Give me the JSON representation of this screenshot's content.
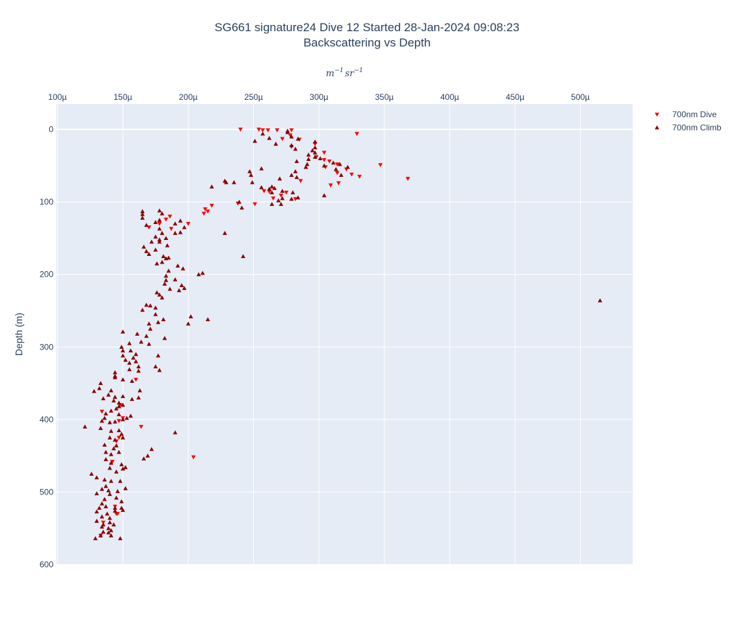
{
  "chart_data": {
    "type": "scatter",
    "title": "SG661 signature24 Dive 12 Started 28-Jan-2024 09:08:23",
    "subtitle": "Backscattering vs Depth",
    "xlabel_base": "m",
    "xlabel_base_exp": "−1",
    "xlabel_unit": "sr",
    "xlabel_unit_exp": "−1",
    "ylabel": "Depth (m)",
    "x_axis_position": "top",
    "y_reversed": true,
    "xlim": [
      9.9e-05,
      0.00054
    ],
    "ylim": [
      600,
      -35
    ],
    "x_ticks": [
      0.0001,
      0.00015,
      0.0002,
      0.00025,
      0.0003,
      0.00035,
      0.0004,
      0.00045,
      0.0005
    ],
    "x_tick_labels": [
      "100µ",
      "150µ",
      "200µ",
      "250µ",
      "300µ",
      "350µ",
      "400µ",
      "450µ",
      "500µ"
    ],
    "y_ticks": [
      0,
      100,
      200,
      300,
      400,
      500,
      600
    ],
    "y_tick_labels": [
      "0",
      "100",
      "200",
      "300",
      "400",
      "500",
      "600"
    ],
    "grid": true,
    "legend_position": "top-right",
    "colors": {
      "plot_background": "#e5ecf6",
      "grid": "#ffffff",
      "dive": "#ff0000",
      "climb": "#8b0000"
    },
    "series": [
      {
        "name": "700nm Dive",
        "marker": "triangle-down",
        "color": "#ff0000",
        "points": [
          [
            0.00024,
            0
          ],
          [
            0.000254,
            0
          ],
          [
            0.000257,
            1
          ],
          [
            0.000261,
            1
          ],
          [
            0.000268,
            1
          ],
          [
            0.000279,
            1
          ],
          [
            0.000278,
            8
          ],
          [
            0.000272,
            13
          ],
          [
            0.000285,
            14
          ],
          [
            0.000297,
            20
          ],
          [
            0.000304,
            32
          ],
          [
            0.000304,
            42
          ],
          [
            0.000308,
            44
          ],
          [
            0.000298,
            38
          ],
          [
            0.000305,
            52
          ],
          [
            0.000314,
            48
          ],
          [
            0.000321,
            55
          ],
          [
            0.000314,
            60
          ],
          [
            0.000325,
            62
          ],
          [
            0.000331,
            65
          ],
          [
            0.000329,
            6
          ],
          [
            0.000347,
            49
          ],
          [
            0.000368,
            68
          ],
          [
            0.000315,
            74
          ],
          [
            0.000309,
            77
          ],
          [
            0.000286,
            71
          ],
          [
            0.000279,
            24
          ],
          [
            0.000282,
            96
          ],
          [
            0.000275,
            87
          ],
          [
            0.000271,
            91
          ],
          [
            0.000265,
            95
          ],
          [
            0.000262,
            86
          ],
          [
            0.000258,
            85
          ],
          [
            0.000251,
            103
          ],
          [
            0.000238,
            102
          ],
          [
            0.000218,
            105
          ],
          [
            0.000215,
            113
          ],
          [
            0.000212,
            116
          ],
          [
            0.000213,
            110
          ],
          [
            0.0002,
            130
          ],
          [
            0.000186,
            120
          ],
          [
            0.000183,
            124
          ],
          [
            0.000178,
            130
          ],
          [
            0.00017,
            135
          ],
          [
            0.000187,
            137
          ],
          [
            0.00016,
            345
          ],
          [
            0.000164,
            410
          ],
          [
            0.000148,
            380
          ],
          [
            0.000134,
            389
          ],
          [
            0.000147,
            425
          ],
          [
            0.000145,
            430
          ],
          [
            0.000142,
            458
          ],
          [
            0.000204,
            452
          ],
          [
            0.000145,
            530
          ],
          [
            0.000135,
            542
          ],
          [
            0.000133,
            560
          ],
          [
            0.000144,
            520
          ],
          [
            0.000146,
            530
          ],
          [
            0.000147,
            402
          ],
          [
            0.00015,
            398
          ]
        ]
      },
      {
        "name": "700nm Climb",
        "marker": "triangle-up",
        "color": "#8b0000",
        "points": [
          [
            0.000276,
            2
          ],
          [
            0.000276,
            4
          ],
          [
            0.000257,
            6
          ],
          [
            0.000262,
            12
          ],
          [
            0.000279,
            10
          ],
          [
            0.000284,
            13
          ],
          [
            0.000251,
            16
          ],
          [
            0.000267,
            20
          ],
          [
            0.000279,
            22
          ],
          [
            0.000282,
            27
          ],
          [
            0.000297,
            17
          ],
          [
            0.000297,
            25
          ],
          [
            0.000295,
            29
          ],
          [
            0.000297,
            32
          ],
          [
            0.000292,
            35
          ],
          [
            0.000297,
            38
          ],
          [
            0.000292,
            41
          ],
          [
            0.000301,
            40
          ],
          [
            0.000283,
            44
          ],
          [
            0.000291,
            48
          ],
          [
            0.000304,
            50
          ],
          [
            0.000311,
            46
          ],
          [
            0.000316,
            48
          ],
          [
            0.000322,
            52
          ],
          [
            0.000317,
            63
          ],
          [
            0.000313,
            55
          ],
          [
            0.00029,
            52
          ],
          [
            0.000282,
            58
          ],
          [
            0.000279,
            63
          ],
          [
            0.000283,
            66
          ],
          [
            0.00027,
            68
          ],
          [
            0.000264,
            79
          ],
          [
            0.000262,
            82
          ],
          [
            0.000266,
            81
          ],
          [
            0.000264,
            87
          ],
          [
            0.000272,
            85
          ],
          [
            0.00028,
            87
          ],
          [
            0.000284,
            94
          ],
          [
            0.000272,
            95
          ],
          [
            0.000264,
            103
          ],
          [
            0.000271,
            103
          ],
          [
            0.000269,
            98
          ],
          [
            0.000279,
            96
          ],
          [
            0.000304,
            91
          ],
          [
            0.000256,
            80
          ],
          [
            0.000256,
            54
          ],
          [
            0.000247,
            58
          ],
          [
            0.000248,
            63
          ],
          [
            0.000249,
            73
          ],
          [
            0.000235,
            73
          ],
          [
            0.000228,
            71
          ],
          [
            0.000229,
            73
          ],
          [
            0.000218,
            79
          ],
          [
            0.000241,
            108
          ],
          [
            0.000228,
            143
          ],
          [
            0.000242,
            175
          ],
          [
            0.000211,
            198
          ],
          [
            0.000195,
            215
          ],
          [
            0.000197,
            219
          ],
          [
            0.000193,
            222
          ],
          [
            0.000208,
            200
          ],
          [
            0.000202,
            258
          ],
          [
            0.0002,
            268
          ],
          [
            0.000215,
            262
          ],
          [
            0.000165,
            113
          ],
          [
            0.000165,
            117
          ],
          [
            0.000165,
            122
          ],
          [
            0.000168,
            132
          ],
          [
            0.000178,
            112
          ],
          [
            0.00018,
            116
          ],
          [
            0.000178,
            125
          ],
          [
            0.000175,
            128
          ],
          [
            0.000178,
            137
          ],
          [
            0.00018,
            143
          ],
          [
            0.000183,
            150
          ],
          [
            0.000178,
            155
          ],
          [
            0.000178,
            152
          ],
          [
            0.000175,
            148
          ],
          [
            0.000172,
            155
          ],
          [
            0.000184,
            160
          ],
          [
            0.000166,
            162
          ],
          [
            0.000168,
            168
          ],
          [
            0.00017,
            172
          ],
          [
            0.000175,
            166
          ],
          [
            0.000181,
            175
          ],
          [
            0.000183,
            178
          ],
          [
            0.000185,
            177
          ],
          [
            0.00018,
            183
          ],
          [
            0.00019,
            143
          ],
          [
            0.000194,
            142
          ],
          [
            0.000194,
            126
          ],
          [
            0.00019,
            130
          ],
          [
            0.000197,
            135
          ],
          [
            0.000176,
            185
          ],
          [
            0.000192,
            188
          ],
          [
            0.000196,
            192
          ],
          [
            0.000185,
            195
          ],
          [
            0.000183,
            202
          ],
          [
            0.000183,
            208
          ],
          [
            0.00019,
            207
          ],
          [
            0.000182,
            213
          ],
          [
            0.000186,
            220
          ],
          [
            0.000176,
            225
          ],
          [
            0.000178,
            228
          ],
          [
            0.00018,
            232
          ],
          [
            0.000168,
            242
          ],
          [
            0.000165,
            249
          ],
          [
            0.000171,
            243
          ],
          [
            0.000175,
            246
          ],
          [
            0.000175,
            255
          ],
          [
            0.000181,
            262
          ],
          [
            0.000177,
            266
          ],
          [
            0.00017,
            268
          ],
          [
            0.000171,
            275
          ],
          [
            0.000161,
            282
          ],
          [
            0.000168,
            285
          ],
          [
            0.000164,
            293
          ],
          [
            0.00017,
            296
          ],
          [
            0.000182,
            288
          ],
          [
            0.00015,
            279
          ],
          [
            0.000149,
            300
          ],
          [
            0.00015,
            305
          ],
          [
            0.000155,
            295
          ],
          [
            0.000156,
            305
          ],
          [
            0.00016,
            310
          ],
          [
            0.00015,
            312
          ],
          [
            0.000152,
            318
          ],
          [
            0.000155,
            322
          ],
          [
            0.000158,
            315
          ],
          [
            0.00016,
            320
          ],
          [
            0.000162,
            327
          ],
          [
            0.000162,
            333
          ],
          [
            0.000155,
            331
          ],
          [
            0.000177,
            312
          ],
          [
            0.000175,
            327
          ],
          [
            0.000178,
            332
          ],
          [
            0.000144,
            335
          ],
          [
            0.000144,
            340
          ],
          [
            0.000144,
            342
          ],
          [
            0.00015,
            345
          ],
          [
            0.000157,
            347
          ],
          [
            0.000133,
            350
          ],
          [
            0.000132,
            357
          ],
          [
            0.000128,
            361
          ],
          [
            0.000141,
            360
          ],
          [
            0.000139,
            366
          ],
          [
            0.000135,
            371
          ],
          [
            0.000144,
            369
          ],
          [
            0.00015,
            368
          ],
          [
            0.000157,
            372
          ],
          [
            0.000162,
            370
          ],
          [
            0.000143,
            374
          ],
          [
            0.000147,
            377
          ],
          [
            0.000147,
            382
          ],
          [
            0.00015,
            380
          ],
          [
            0.000145,
            385
          ],
          [
            0.000141,
            388
          ],
          [
            0.000147,
            393
          ],
          [
            0.000137,
            392
          ],
          [
            0.000136,
            398
          ],
          [
            0.000153,
            398
          ],
          [
            0.00015,
            400
          ],
          [
            0.000156,
            395
          ],
          [
            0.000134,
            402
          ],
          [
            0.00014,
            404
          ],
          [
            0.000144,
            403
          ],
          [
            0.000121,
            410
          ],
          [
            0.000133,
            412
          ],
          [
            0.000141,
            416
          ],
          [
            0.000147,
            415
          ],
          [
            0.000149,
            420
          ],
          [
            0.00014,
            425
          ],
          [
            0.000144,
            428
          ],
          [
            0.00015,
            425
          ],
          [
            0.000145,
            436
          ],
          [
            0.000136,
            435
          ],
          [
            0.000143,
            440
          ],
          [
            0.000137,
            445
          ],
          [
            0.000141,
            448
          ],
          [
            0.000147,
            445
          ],
          [
            0.000137,
            455
          ],
          [
            0.000141,
            460
          ],
          [
            0.00014,
            467
          ],
          [
            0.000149,
            462
          ],
          [
            0.00015,
            468
          ],
          [
            0.000152,
            466
          ],
          [
            0.000126,
            475
          ],
          [
            0.00013,
            480
          ],
          [
            0.000136,
            483
          ],
          [
            0.000141,
            485
          ],
          [
            0.000145,
            472
          ],
          [
            0.000148,
            485
          ],
          [
            0.000137,
            492
          ],
          [
            0.000134,
            496
          ],
          [
            0.000139,
            498
          ],
          [
            0.000146,
            499
          ],
          [
            0.000152,
            495
          ],
          [
            0.00014,
            503
          ],
          [
            0.00013,
            502
          ],
          [
            0.000136,
            510
          ],
          [
            0.000145,
            508
          ],
          [
            0.000149,
            513
          ],
          [
            0.000134,
            516
          ],
          [
            0.000132,
            522
          ],
          [
            0.000137,
            520
          ],
          [
            0.000144,
            522
          ],
          [
            0.000144,
            526
          ],
          [
            0.000149,
            522
          ],
          [
            0.00013,
            527
          ],
          [
            0.000134,
            534
          ],
          [
            0.000138,
            530
          ],
          [
            0.00014,
            536
          ],
          [
            0.00015,
            525
          ],
          [
            0.00013,
            540
          ],
          [
            0.000135,
            545
          ],
          [
            0.00014,
            542
          ],
          [
            0.000143,
            545
          ],
          [
            0.000134,
            548
          ],
          [
            0.000139,
            550
          ],
          [
            0.000141,
            553
          ],
          [
            0.000135,
            555
          ],
          [
            0.000139,
            556
          ],
          [
            0.000133,
            560
          ],
          [
            0.000141,
            560
          ],
          [
            0.000129,
            564
          ],
          [
            0.000148,
            564
          ],
          [
            0.000163,
            360
          ],
          [
            0.000166,
            454
          ],
          [
            0.000169,
            450
          ],
          [
            0.000172,
            441
          ],
          [
            0.00019,
            418
          ],
          [
            0.000515,
            236
          ],
          [
            0.000239,
            100
          ]
        ]
      }
    ]
  }
}
